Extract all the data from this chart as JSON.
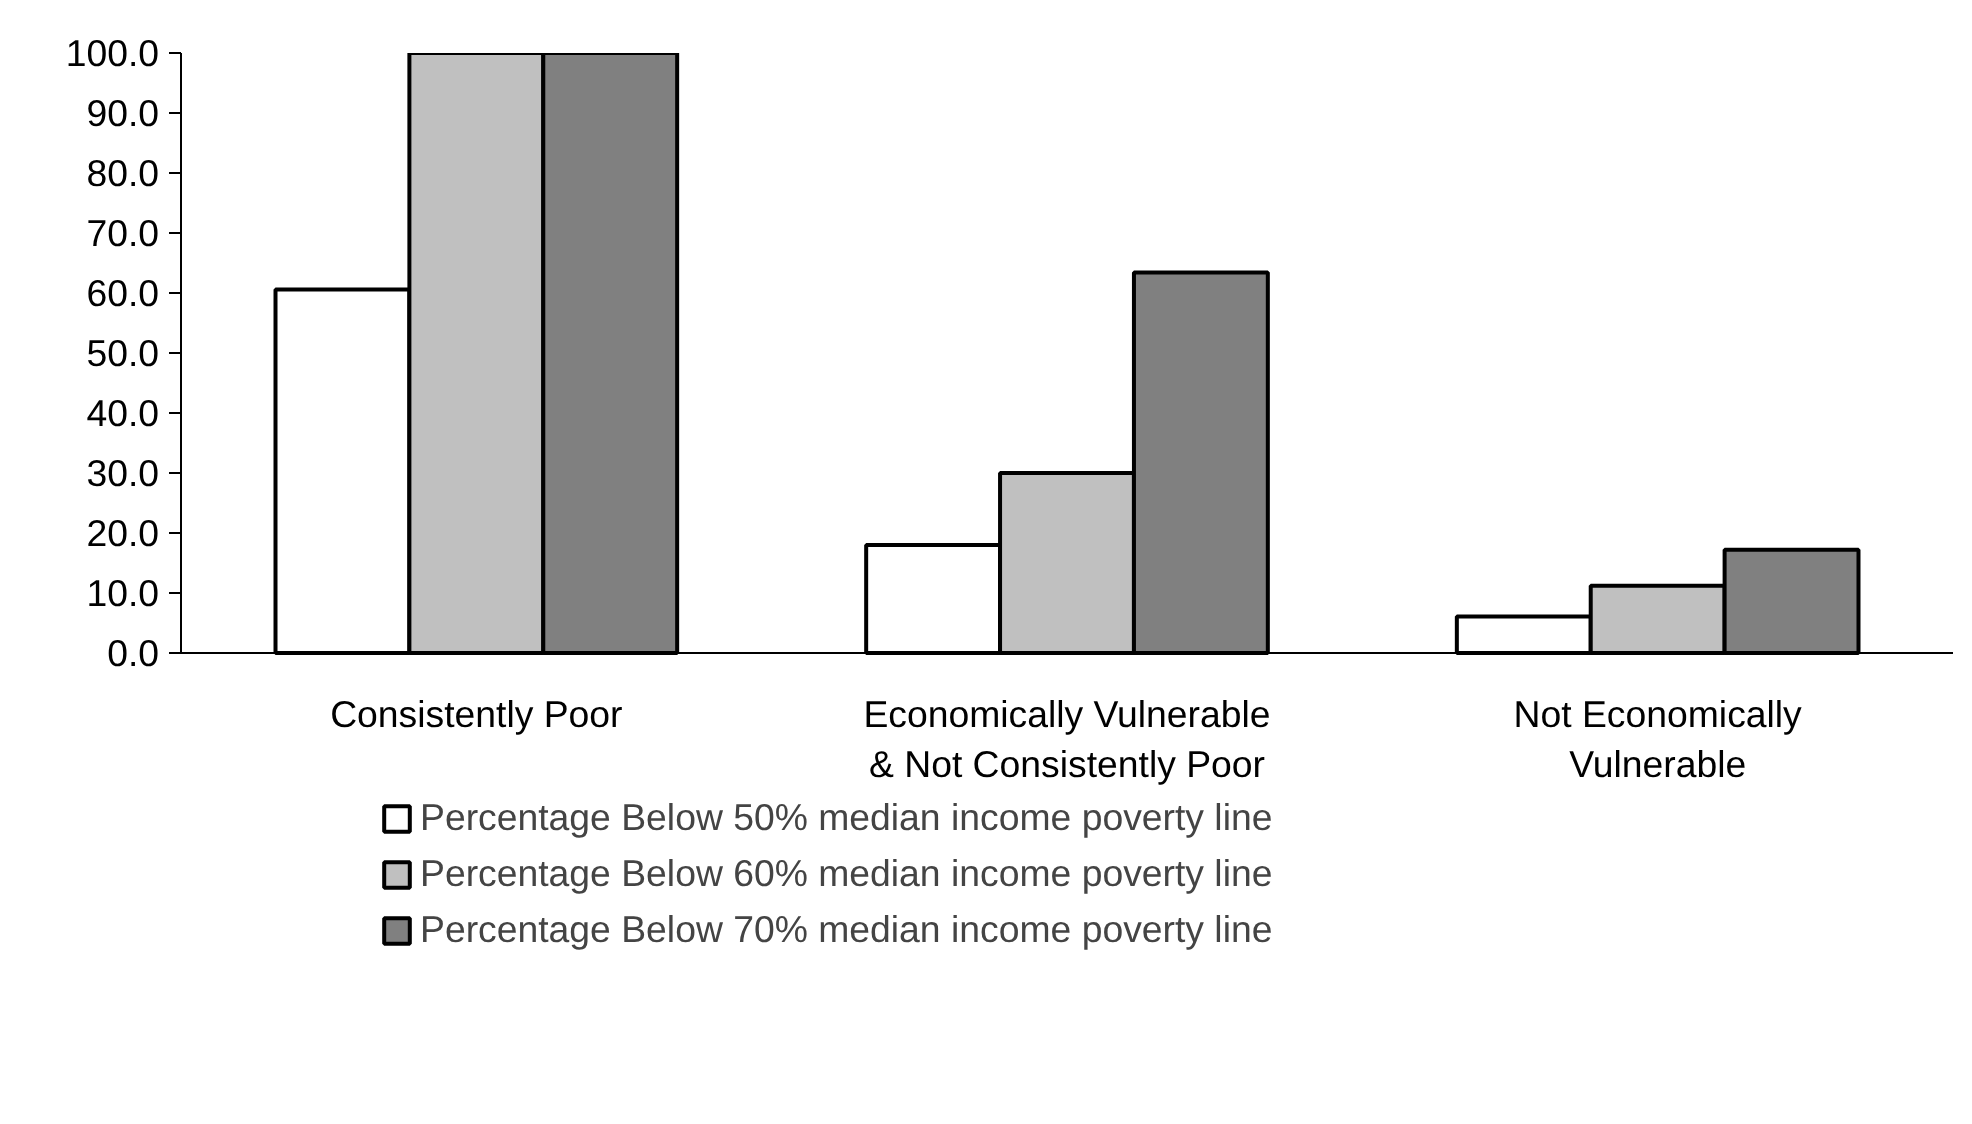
{
  "chart_data": {
    "type": "bar",
    "categories": [
      "Consistently Poor",
      "Economically Vulnerable\n& Not Consistently Poor",
      "Not Economically\nVulnerable"
    ],
    "series": [
      {
        "name": "Percentage Below 50% median income poverty line",
        "color": "#ffffff",
        "values": [
          60.6,
          18.0,
          6.1
        ]
      },
      {
        "name": "Percentage Below 60% median income poverty line",
        "color": "#c0c0c0",
        "values": [
          100.0,
          30.0,
          11.2
        ]
      },
      {
        "name": "Percentage Below 70% median income poverty line",
        "color": "#808080",
        "values": [
          100.0,
          63.4,
          17.2
        ]
      }
    ],
    "ylim": [
      0,
      100
    ],
    "yticks": [
      {
        "value": 0,
        "label": "0.0"
      },
      {
        "value": 10,
        "label": "10.0"
      },
      {
        "value": 20,
        "label": "20.0"
      },
      {
        "value": 30,
        "label": "30.0"
      },
      {
        "value": 40,
        "label": "40.0"
      },
      {
        "value": 50,
        "label": "50.0"
      },
      {
        "value": 60,
        "label": "60.0"
      },
      {
        "value": 70,
        "label": "70.0"
      },
      {
        "value": 80,
        "label": "80.0"
      },
      {
        "value": 90,
        "label": "90.0"
      },
      {
        "value": 100,
        "label": "100.0"
      }
    ],
    "grid": false,
    "legend": "bottom"
  }
}
